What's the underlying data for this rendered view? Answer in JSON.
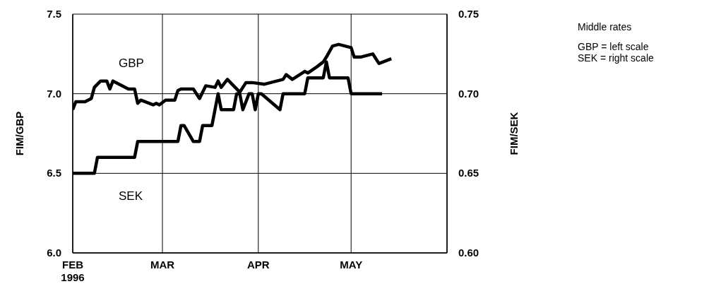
{
  "chart_data": {
    "type": "line",
    "ylabel": "FIM/GBP",
    "y2label": "FIM/SEK",
    "annotations": [
      "Middle rates",
      "GBP = left scale",
      "SEK = right scale"
    ],
    "xlim": [
      "1996-02-01",
      "1996-06-01"
    ],
    "xticks": [
      {
        "value": "1996-02-01",
        "label": "FEB\n1996"
      },
      {
        "value": "1996-03-01",
        "label": "MAR"
      },
      {
        "value": "1996-04-01",
        "label": "APR"
      },
      {
        "value": "1996-05-01",
        "label": "MAY"
      }
    ],
    "ylim": [
      6.0,
      7.5
    ],
    "yticks": [
      {
        "value": 6.0,
        "label": "6.0"
      },
      6.5,
      {
        "value": 7.0,
        "label": "7.0"
      },
      7.5
    ],
    "y2lim": [
      0.6,
      0.75
    ],
    "y2ticks": [
      {
        "value": 0.6,
        "label": "0.60"
      },
      0.65,
      {
        "value": 0.7,
        "label": "0.70"
      },
      0.75
    ],
    "grid": true,
    "marker": "none",
    "line_style": "solid",
    "series": [
      {
        "name": "GBP",
        "color": "#000000",
        "x": [
          "1996-02-01",
          "1996-02-02",
          "1996-02-05",
          "1996-02-07",
          "1996-02-08",
          "1996-02-10",
          "1996-02-12",
          "1996-02-13",
          "1996-02-14",
          "1996-02-16",
          "1996-02-19",
          "1996-02-21",
          "1996-02-22",
          "1996-02-23",
          "1996-02-27",
          "1996-02-28",
          "1996-02-29",
          "1996-03-02",
          "1996-03-05",
          "1996-03-06",
          "1996-03-07",
          "1996-03-11",
          "1996-03-13",
          "1996-03-15",
          "1996-03-18",
          "1996-03-19",
          "1996-03-20",
          "1996-03-22",
          "1996-03-26",
          "1996-03-28",
          "1996-03-30",
          "1996-04-03",
          "1996-04-05",
          "1996-04-09",
          "1996-04-10",
          "1996-04-12",
          "1996-04-16",
          "1996-04-17",
          "1996-04-20",
          "1996-04-22",
          "1996-04-23",
          "1996-04-25",
          "1996-04-27",
          "1996-05-01",
          "1996-05-02",
          "1996-05-04",
          "1996-05-08",
          "1996-05-10",
          "1996-05-14"
        ],
        "values": [
          6.9,
          6.95,
          6.95,
          6.97,
          7.04,
          7.08,
          7.08,
          7.03,
          7.08,
          7.06,
          7.03,
          7.03,
          6.94,
          6.96,
          6.93,
          6.94,
          6.93,
          6.96,
          6.96,
          7.02,
          7.03,
          7.03,
          6.97,
          7.05,
          7.04,
          7.08,
          7.04,
          7.09,
          7.01,
          7.07,
          7.07,
          7.06,
          7.07,
          7.09,
          7.12,
          7.09,
          7.14,
          7.13,
          7.17,
          7.2,
          7.23,
          7.3,
          7.31,
          7.29,
          7.23,
          7.23,
          7.25,
          7.19,
          7.22
        ]
      },
      {
        "name": "SEK",
        "color": "#000000",
        "axis": "y2",
        "x": [
          "1996-02-01",
          "1996-02-08",
          "1996-02-09",
          "1996-02-21",
          "1996-02-22",
          "1996-03-06",
          "1996-03-07",
          "1996-03-08",
          "1996-03-11",
          "1996-03-13",
          "1996-03-14",
          "1996-03-17",
          "1996-03-19",
          "1996-03-20",
          "1996-03-24",
          "1996-03-25",
          "1996-03-26",
          "1996-03-27",
          "1996-03-29",
          "1996-03-30",
          "1996-03-31",
          "1996-04-01",
          "1996-04-02",
          "1996-04-08",
          "1996-04-09",
          "1996-04-16",
          "1996-04-17",
          "1996-04-22",
          "1996-04-23",
          "1996-04-24",
          "1996-04-30",
          "1996-05-01",
          "1996-05-11"
        ],
        "values": [
          0.65,
          0.65,
          0.66,
          0.66,
          0.67,
          0.67,
          0.68,
          0.68,
          0.67,
          0.67,
          0.68,
          0.68,
          0.7,
          0.69,
          0.69,
          0.7,
          0.7,
          0.69,
          0.7,
          0.7,
          0.69,
          0.7,
          0.7,
          0.69,
          0.7,
          0.7,
          0.71,
          0.71,
          0.72,
          0.71,
          0.71,
          0.7,
          0.7
        ]
      }
    ]
  }
}
